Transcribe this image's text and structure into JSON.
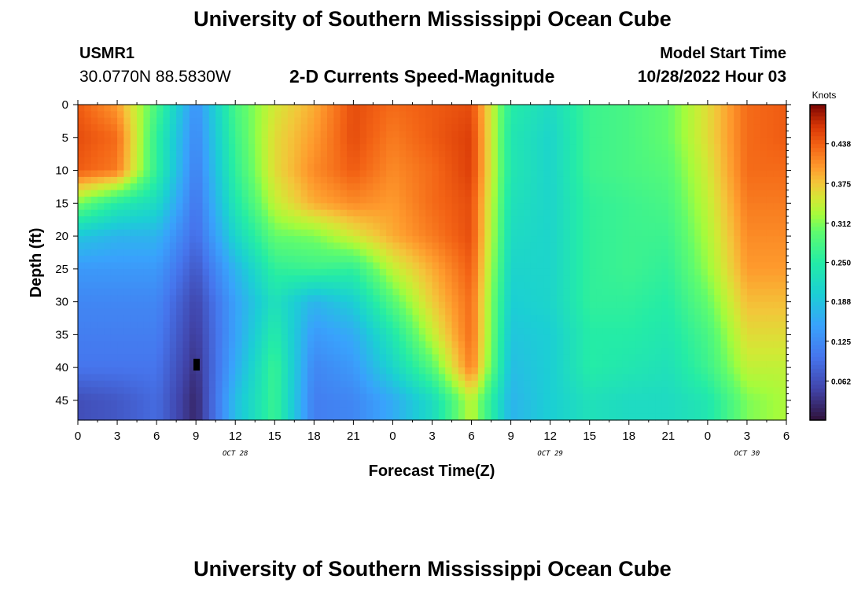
{
  "header": {
    "title": "University of Southern Mississippi Ocean Cube",
    "station_id": "USMR1",
    "coordinates": "30.0770N  88.5830W",
    "subtitle": "2-D Currents Speed-Magnitude",
    "model_start_label": "Model Start Time",
    "model_start_value": "10/28/2022 Hour 03"
  },
  "footer": {
    "title": "University of Southern Mississippi Ocean Cube"
  },
  "chart_data": {
    "type": "heatmap",
    "xlabel": "Forecast Time(Z)",
    "ylabel": "Depth (ft)",
    "x_ticks": [
      "0",
      "3",
      "6",
      "9",
      "12",
      "15",
      "18",
      "21",
      "0",
      "3",
      "6",
      "9",
      "12",
      "15",
      "18",
      "21",
      "0",
      "3",
      "6"
    ],
    "x_range_hours": [
      0,
      54
    ],
    "date_labels": [
      {
        "label": "OCT 28",
        "hour": 12
      },
      {
        "label": "OCT 29",
        "hour": 36
      },
      {
        "label": "OCT 30",
        "hour": 51
      }
    ],
    "y_ticks": [
      "0",
      "5",
      "10",
      "15",
      "20",
      "25",
      "30",
      "35",
      "40",
      "45"
    ],
    "ylim": [
      0,
      48
    ],
    "y_inverted": true,
    "colorbar": {
      "title": "Knots",
      "ticks": [
        "0.438",
        "0.375",
        "0.312",
        "0.250",
        "0.188",
        "0.125",
        "0.062"
      ],
      "tick_values": [
        0.438,
        0.375,
        0.312,
        0.25,
        0.188,
        0.125,
        0.062
      ],
      "range": [
        0.0,
        0.5
      ],
      "colormap": "turbo"
    },
    "depth_levels_ft": [
      0,
      5,
      10,
      15,
      20,
      25,
      30,
      35,
      40,
      45
    ],
    "hour_columns": [
      0,
      3,
      6,
      9,
      12,
      15,
      18,
      21,
      24,
      27,
      30,
      33,
      36,
      39,
      42,
      45,
      48,
      51,
      54
    ],
    "speed_knots": [
      [
        0.44,
        0.4,
        0.28,
        0.13,
        0.28,
        0.35,
        0.39,
        0.45,
        0.43,
        0.44,
        0.45,
        0.25,
        0.22,
        0.27,
        0.28,
        0.3,
        0.36,
        0.43,
        0.44
      ],
      [
        0.45,
        0.43,
        0.26,
        0.12,
        0.27,
        0.36,
        0.4,
        0.45,
        0.42,
        0.44,
        0.46,
        0.24,
        0.21,
        0.27,
        0.28,
        0.3,
        0.36,
        0.43,
        0.44
      ],
      [
        0.44,
        0.42,
        0.26,
        0.11,
        0.26,
        0.36,
        0.41,
        0.44,
        0.41,
        0.43,
        0.46,
        0.24,
        0.21,
        0.27,
        0.28,
        0.29,
        0.35,
        0.43,
        0.43
      ],
      [
        0.31,
        0.25,
        0.22,
        0.1,
        0.24,
        0.34,
        0.39,
        0.41,
        0.4,
        0.43,
        0.45,
        0.23,
        0.21,
        0.26,
        0.27,
        0.28,
        0.34,
        0.42,
        0.42
      ],
      [
        0.19,
        0.17,
        0.17,
        0.09,
        0.21,
        0.3,
        0.31,
        0.35,
        0.39,
        0.42,
        0.45,
        0.22,
        0.21,
        0.26,
        0.27,
        0.27,
        0.33,
        0.41,
        0.41
      ],
      [
        0.14,
        0.14,
        0.14,
        0.07,
        0.17,
        0.26,
        0.27,
        0.26,
        0.34,
        0.39,
        0.44,
        0.21,
        0.21,
        0.26,
        0.27,
        0.26,
        0.32,
        0.4,
        0.4
      ],
      [
        0.12,
        0.12,
        0.12,
        0.05,
        0.15,
        0.23,
        0.17,
        0.2,
        0.29,
        0.37,
        0.43,
        0.2,
        0.21,
        0.26,
        0.26,
        0.25,
        0.3,
        0.38,
        0.38
      ],
      [
        0.11,
        0.11,
        0.11,
        0.04,
        0.15,
        0.25,
        0.14,
        0.16,
        0.24,
        0.34,
        0.43,
        0.19,
        0.2,
        0.25,
        0.25,
        0.24,
        0.28,
        0.36,
        0.36
      ],
      [
        0.1,
        0.1,
        0.1,
        0.03,
        0.16,
        0.27,
        0.12,
        0.14,
        0.21,
        0.29,
        0.42,
        0.18,
        0.2,
        0.25,
        0.24,
        0.23,
        0.27,
        0.34,
        0.34
      ],
      [
        0.06,
        0.07,
        0.09,
        0.02,
        0.18,
        0.27,
        0.11,
        0.12,
        0.16,
        0.22,
        0.34,
        0.17,
        0.2,
        0.23,
        0.22,
        0.22,
        0.24,
        0.31,
        0.33
      ]
    ]
  }
}
